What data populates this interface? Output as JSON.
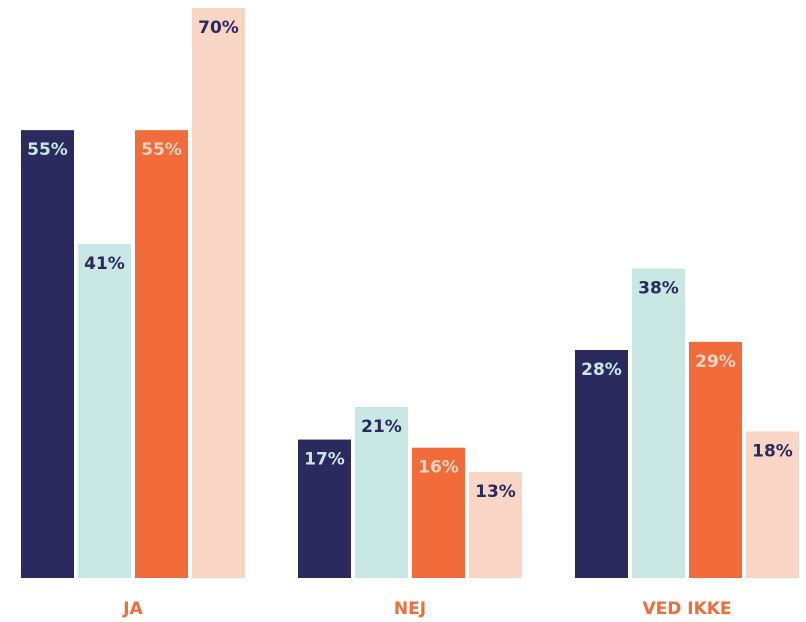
{
  "chart_data": {
    "type": "bar",
    "categories": [
      "JA",
      "NEJ",
      "VED IKKE"
    ],
    "category_color": "#f26b3a",
    "series": [
      {
        "color": "#2a2a5e",
        "label_color": "#c9e8e3",
        "values": [
          55,
          17,
          28
        ],
        "value_labels": [
          "55%",
          "17%",
          "28%"
        ]
      },
      {
        "color": "#c9e8e3",
        "label_color": "#2a2a5e",
        "values": [
          41,
          21,
          38
        ],
        "value_labels": [
          "41%",
          "21%",
          "38%"
        ]
      },
      {
        "color": "#f26b3a",
        "label_color": "#f8d5c5",
        "values": [
          55,
          16,
          29
        ],
        "value_labels": [
          "55%",
          "16%",
          "29%"
        ]
      },
      {
        "color": "#f8d5c5",
        "label_color": "#2a2a5e",
        "values": [
          70,
          13,
          18
        ],
        "value_labels": [
          "70%",
          "13%",
          "18%"
        ]
      }
    ]
  }
}
